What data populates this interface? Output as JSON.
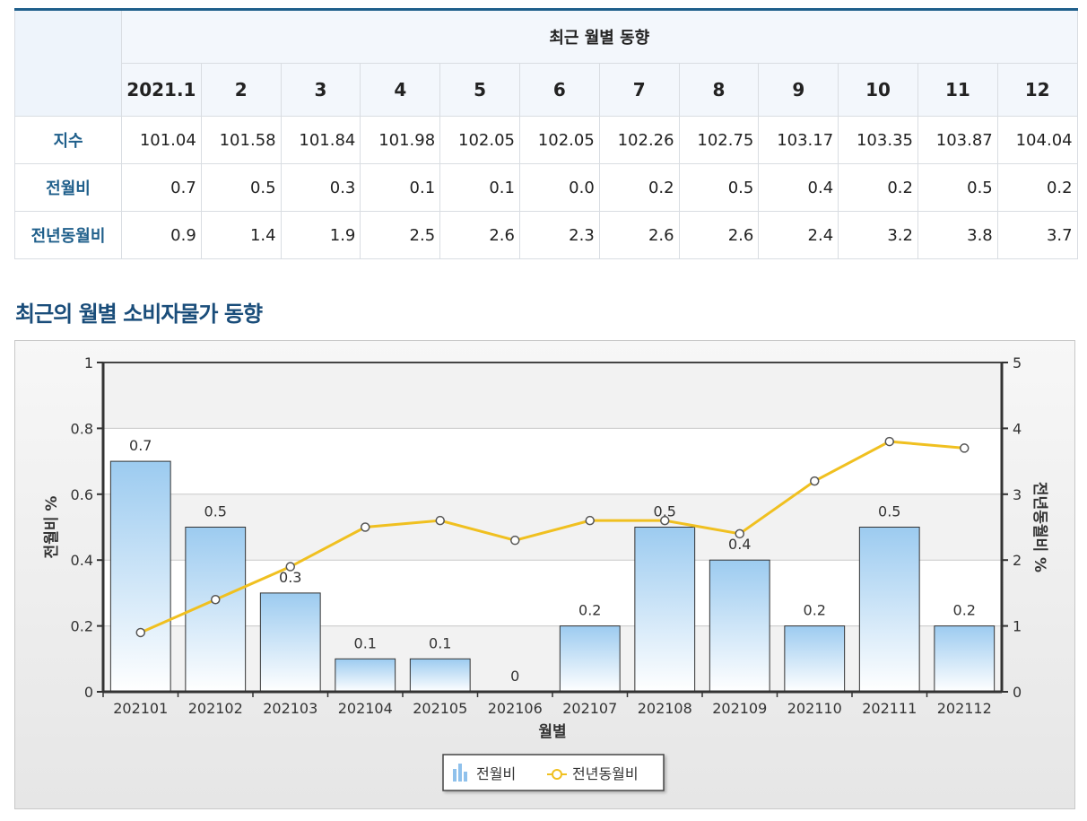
{
  "table": {
    "title": "최근 월별 동향",
    "months": [
      "2021.1",
      "2",
      "3",
      "4",
      "5",
      "6",
      "7",
      "8",
      "9",
      "10",
      "11",
      "12"
    ],
    "rows": [
      {
        "label": "지수",
        "values": [
          "101.04",
          "101.58",
          "101.84",
          "101.98",
          "102.05",
          "102.05",
          "102.26",
          "102.75",
          "103.17",
          "103.35",
          "103.87",
          "104.04"
        ]
      },
      {
        "label": "전월비",
        "values": [
          "0.7",
          "0.5",
          "0.3",
          "0.1",
          "0.1",
          "0.0",
          "0.2",
          "0.5",
          "0.4",
          "0.2",
          "0.5",
          "0.2"
        ]
      },
      {
        "label": "전년동월비",
        "values": [
          "0.9",
          "1.4",
          "1.9",
          "2.5",
          "2.6",
          "2.3",
          "2.6",
          "2.6",
          "2.4",
          "3.2",
          "3.8",
          "3.7"
        ]
      }
    ]
  },
  "section_title": "최근의 월별 소비자물가 동향",
  "chart_data": {
    "type": "bar",
    "categories": [
      "202101",
      "202102",
      "202103",
      "202104",
      "202105",
      "202106",
      "202107",
      "202108",
      "202109",
      "202110",
      "202111",
      "202112"
    ],
    "series": [
      {
        "name": "전월비",
        "type": "bar",
        "axis": "left",
        "values": [
          0.7,
          0.5,
          0.3,
          0.1,
          0.1,
          0,
          0.2,
          0.5,
          0.4,
          0.2,
          0.5,
          0.2
        ],
        "color": "#9ccbf0"
      },
      {
        "name": "전년동월비",
        "type": "line",
        "axis": "right",
        "values": [
          0.9,
          1.4,
          1.9,
          2.5,
          2.6,
          2.3,
          2.6,
          2.6,
          2.4,
          3.2,
          3.8,
          3.7
        ],
        "color": "#f0c020"
      }
    ],
    "xlabel": "월별",
    "ylabel_left": "전월비 %",
    "ylabel_right": "전년동월비 %",
    "ylim_left": [
      0,
      1
    ],
    "ylim_right": [
      0,
      5
    ],
    "yticks_left": [
      "0",
      "0.2",
      "0.4",
      "0.6",
      "0.8",
      "1"
    ],
    "yticks_right": [
      "0",
      "1",
      "2",
      "3",
      "4",
      "5"
    ],
    "bar_labels": [
      "0.7",
      "0.5",
      "0.3",
      "0.1",
      "0.1",
      "0",
      "0.2",
      "0.5",
      "0.4",
      "0.2",
      "0.5",
      "0.2"
    ],
    "grid": true,
    "legend": "bottom-center"
  }
}
